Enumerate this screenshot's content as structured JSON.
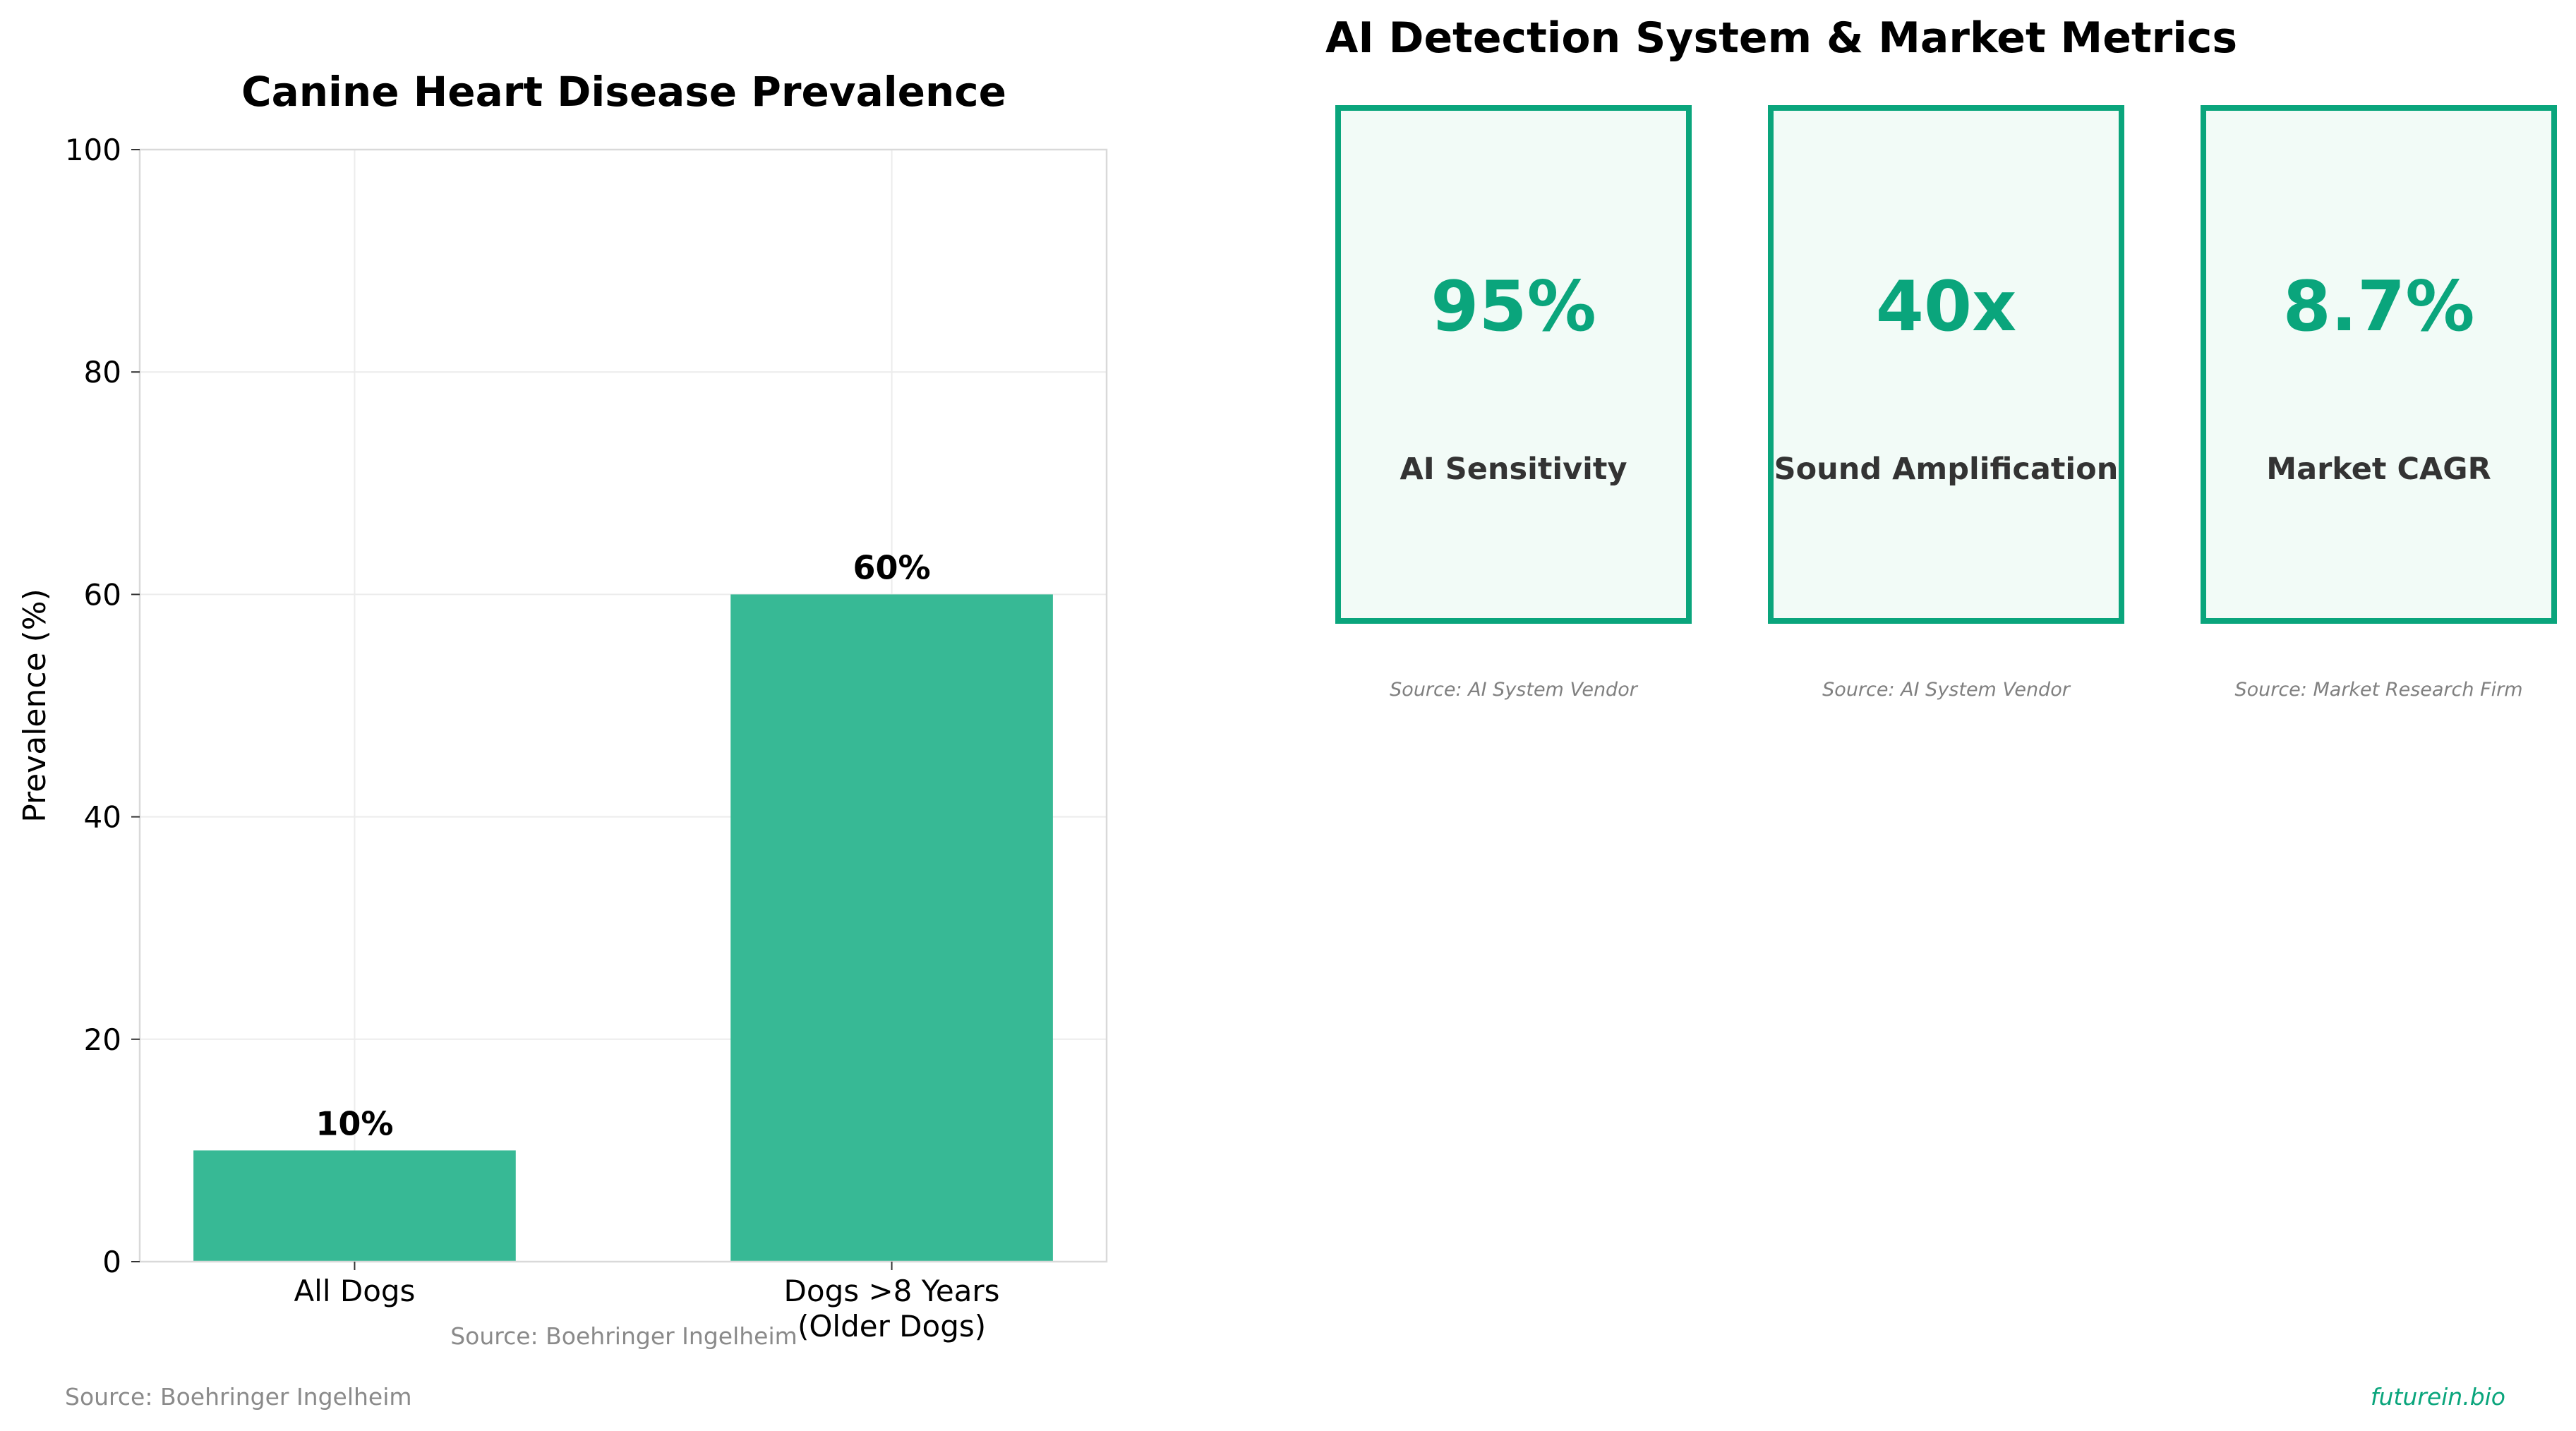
{
  "chart_data": {
    "type": "bar",
    "title": "Canine Heart Disease Prevalence",
    "categories": [
      "All Dogs",
      "Dogs >8 Years\n(Older Dogs)"
    ],
    "values": [
      10,
      60
    ],
    "data_labels": [
      "10%",
      "60%"
    ],
    "xlabel": "",
    "ylabel": "Prevalence (%)",
    "ylim": [
      0,
      100
    ],
    "yticks": [
      0,
      20,
      40,
      60,
      80,
      100
    ],
    "grid": true,
    "bar_color": "#37b995",
    "source": "Source: Boehringer Ingelheim"
  },
  "metrics": {
    "title": "AI Detection System & Market Metrics",
    "accent_color": "#0aa57c",
    "cards": [
      {
        "value": "95%",
        "label": "AI Sensitivity",
        "source": "Source: AI System Vendor"
      },
      {
        "value": "40x",
        "label": "Sound Amplification",
        "source": "Source: AI System Vendor"
      },
      {
        "value": "8.7%",
        "label": "Market CAGR",
        "source": "Source: Market Research Firm"
      }
    ]
  },
  "footer": {
    "source": "Source: Boehringer Ingelheim",
    "brand": "futurein.bio"
  }
}
